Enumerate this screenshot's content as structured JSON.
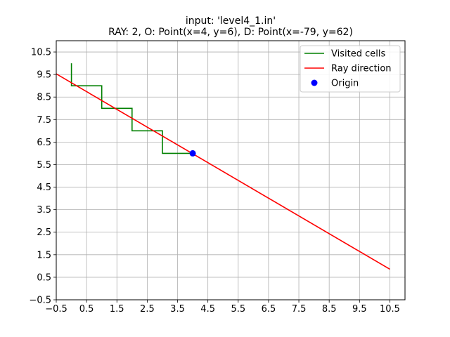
{
  "chart_data": {
    "type": "line",
    "title": "input: 'level4_1.in'",
    "subtitle": "RAY: 2, O: Point(x=4, y=6), D: Point(x=-79, y=62)",
    "xlabel": "",
    "ylabel": "",
    "xlim": [
      -0.5,
      11.0
    ],
    "ylim": [
      -0.5,
      11.0
    ],
    "xticks": [
      "−0.5",
      "0.5",
      "1.5",
      "2.5",
      "3.5",
      "4.5",
      "5.5",
      "6.5",
      "7.5",
      "8.5",
      "9.5",
      "10.5"
    ],
    "yticks": [
      "−0.5",
      "0.5",
      "1.5",
      "2.5",
      "3.5",
      "4.5",
      "5.5",
      "6.5",
      "7.5",
      "8.5",
      "9.5",
      "10.5"
    ],
    "grid": true,
    "legend_position": "top-right",
    "series": [
      {
        "name": "Visited cells",
        "kind": "line",
        "color": "#008000",
        "points": [
          [
            4,
            6
          ],
          [
            3,
            6
          ],
          [
            3,
            7
          ],
          [
            2,
            7
          ],
          [
            2,
            8
          ],
          [
            1,
            8
          ],
          [
            1,
            9
          ],
          [
            0,
            9
          ],
          [
            0,
            10
          ]
        ]
      },
      {
        "name": "Ray direction",
        "kind": "line",
        "color": "#ff0000",
        "points": [
          [
            -0.5,
            9.53
          ],
          [
            10.5,
            0.86
          ]
        ]
      },
      {
        "name": "Origin",
        "kind": "scatter",
        "color": "#0000ff",
        "points": [
          [
            4,
            6
          ]
        ]
      }
    ]
  }
}
